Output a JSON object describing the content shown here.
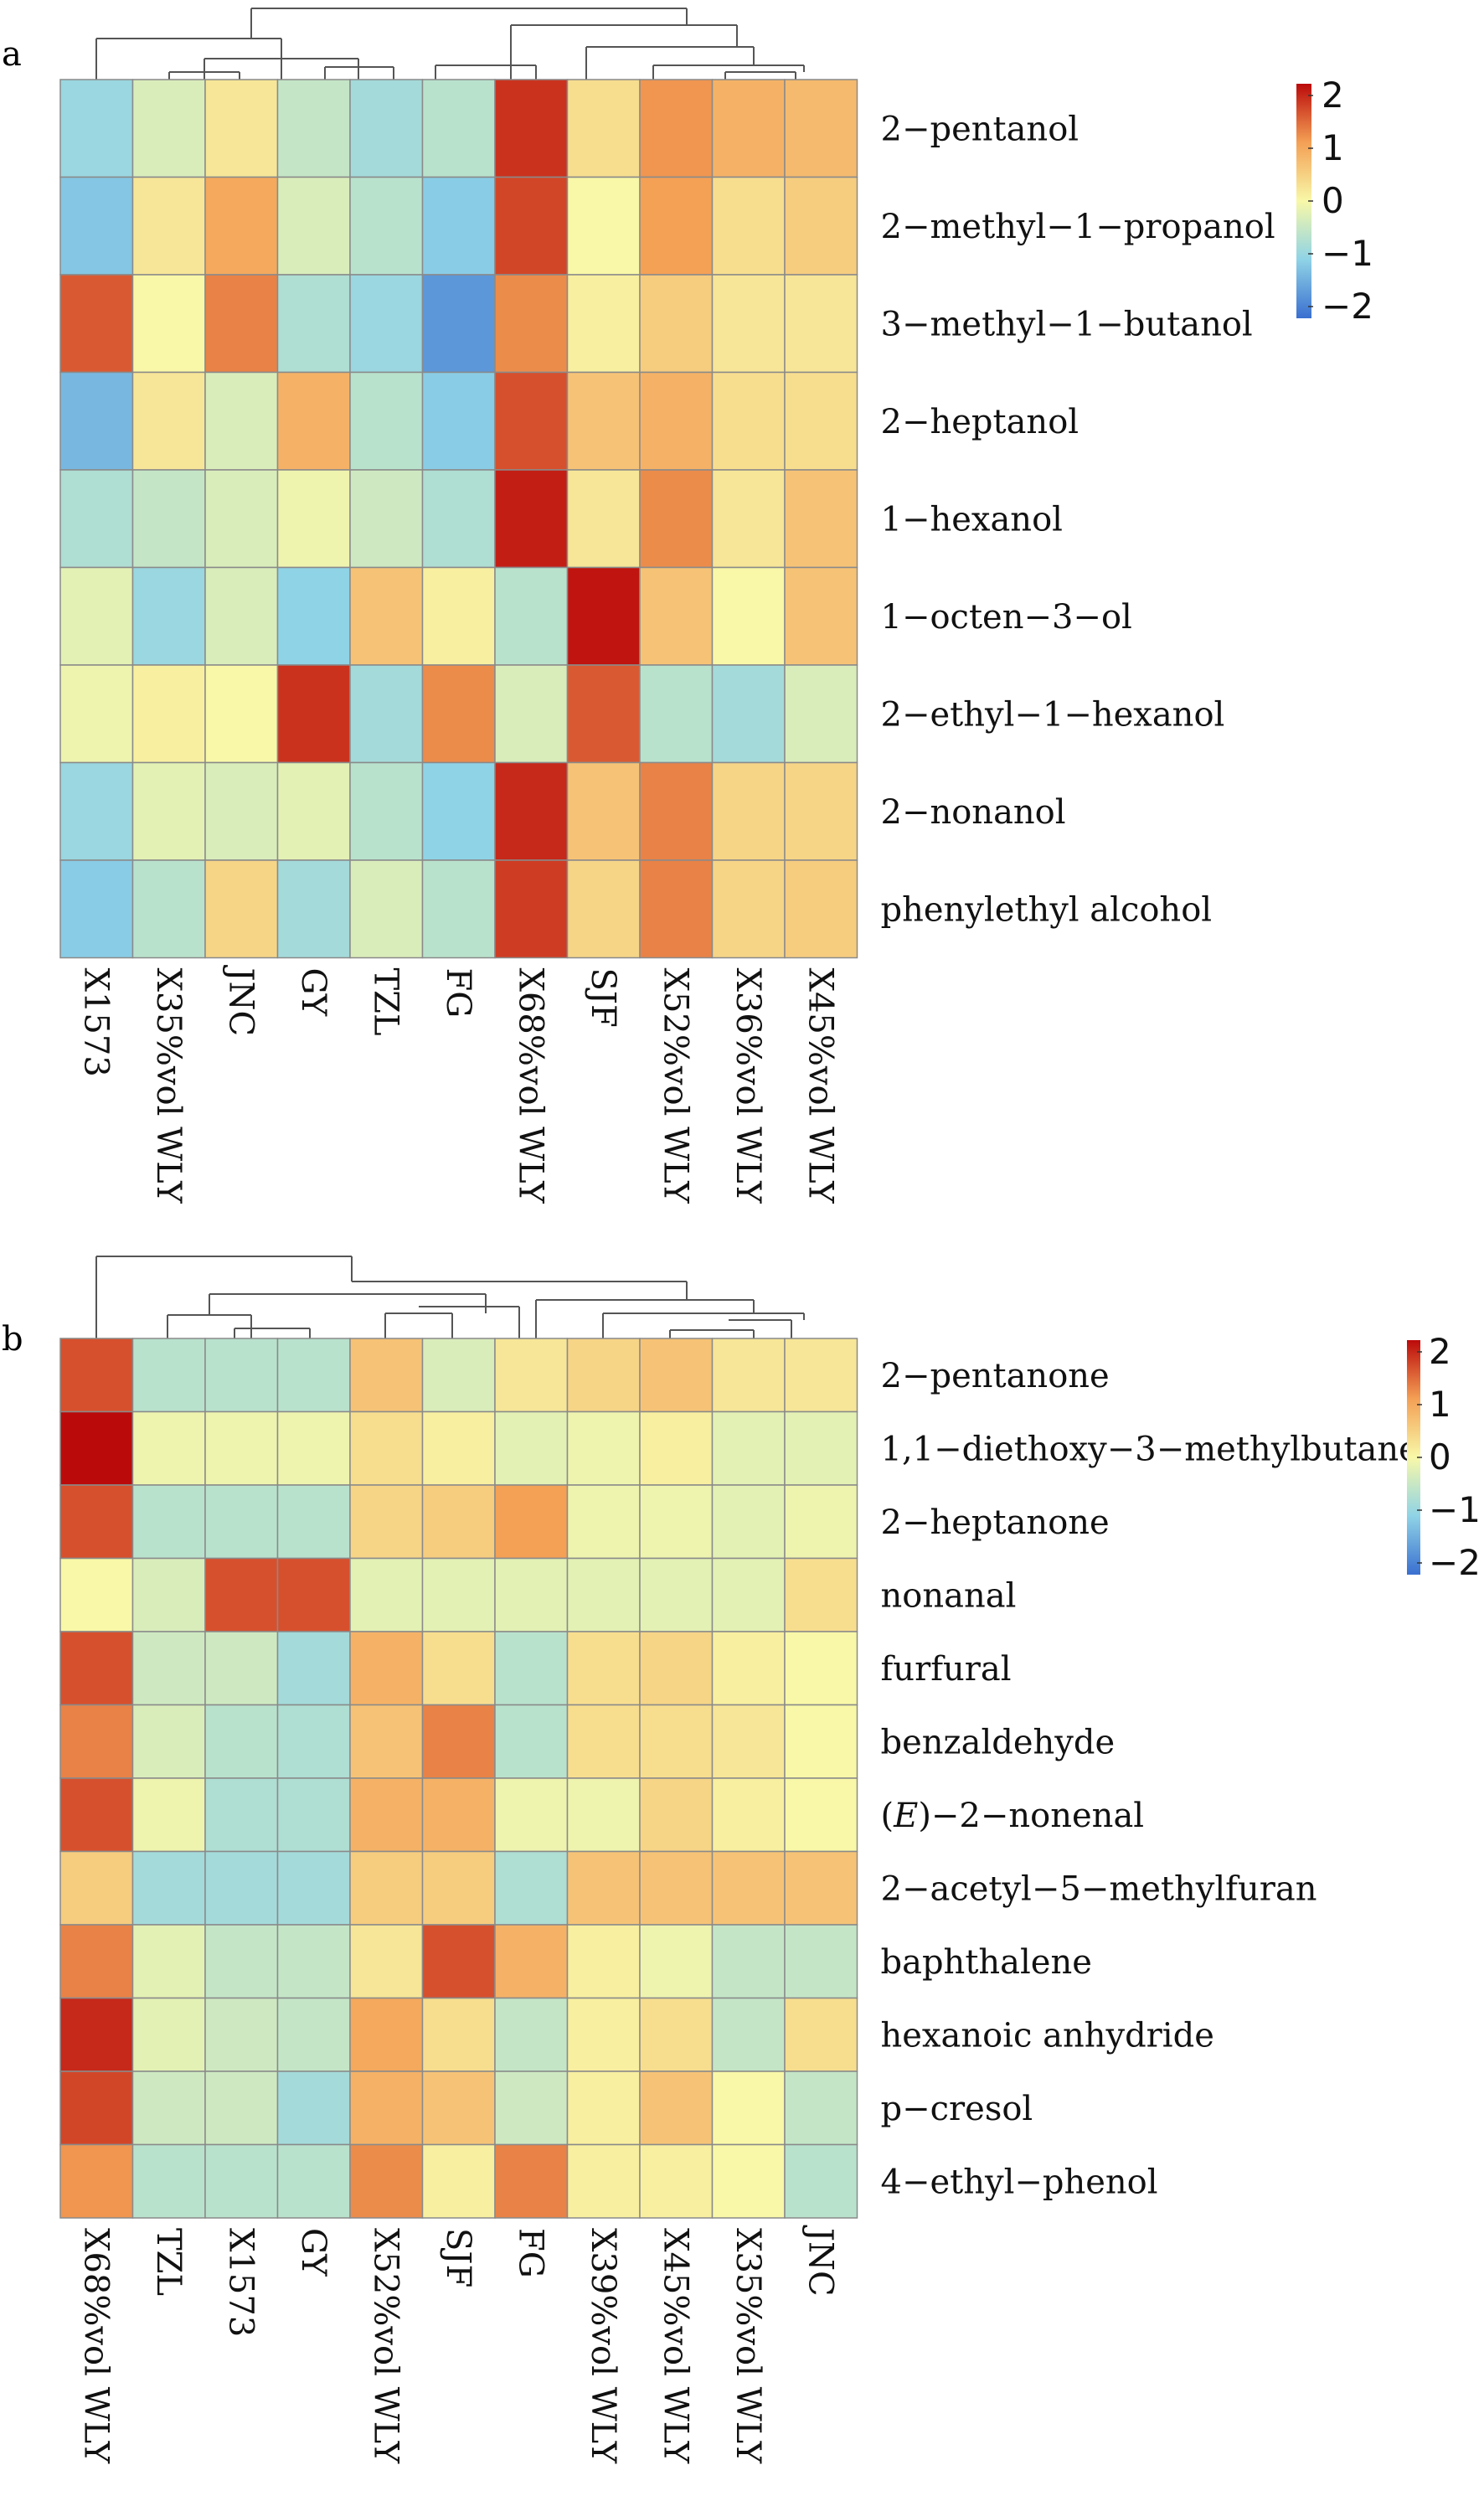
{
  "chart_data": [
    {
      "type": "heatmap",
      "panel_label": "a",
      "rows": [
        "2−pentanol",
        "2−methyl−1−propanol",
        "3−methyl−1−butanol",
        "2−heptanol",
        "1−hexanol",
        "1−octen−3−ol",
        "2−ethyl−1−hexanol",
        "2−nonanol",
        "phenylethyl alcohol"
      ],
      "columns": [
        "X1573",
        "X35%vol WLY",
        "JNC",
        "GY",
        "TZL",
        "FG",
        "X68%vol WLY",
        "SJF",
        "X52%vol WLY",
        "X36%vol WLY",
        "X45%vol WLY"
      ],
      "values": [
        [
          -0.9,
          -0.3,
          0.2,
          -0.5,
          -0.8,
          -0.6,
          2.1,
          0.3,
          1.1,
          0.8,
          0.7
        ],
        [
          -1.2,
          0.2,
          0.9,
          -0.3,
          -0.6,
          -1.1,
          1.9,
          0.0,
          1.0,
          0.3,
          0.5
        ],
        [
          1.7,
          0.0,
          1.3,
          -0.7,
          -0.9,
          -1.9,
          1.2,
          0.1,
          0.5,
          0.2,
          0.2
        ],
        [
          -1.4,
          0.2,
          -0.3,
          0.8,
          -0.6,
          -1.1,
          1.8,
          0.6,
          0.8,
          0.3,
          0.3
        ],
        [
          -0.7,
          -0.5,
          -0.3,
          -0.1,
          -0.4,
          -0.7,
          2.3,
          0.2,
          1.2,
          0.2,
          0.6
        ],
        [
          -0.2,
          -0.9,
          -0.3,
          -1.0,
          0.6,
          0.1,
          -0.6,
          2.4,
          0.6,
          0.0,
          0.6
        ],
        [
          -0.1,
          0.1,
          0.0,
          2.1,
          -0.8,
          1.2,
          -0.3,
          1.7,
          -0.6,
          -0.8,
          -0.3
        ],
        [
          -0.9,
          -0.2,
          -0.3,
          -0.2,
          -0.6,
          -1.0,
          2.2,
          0.6,
          1.3,
          0.4,
          0.4
        ],
        [
          -1.1,
          -0.6,
          0.4,
          -0.8,
          -0.3,
          -0.6,
          2.0,
          0.4,
          1.3,
          0.4,
          0.5
        ]
      ],
      "scale": {
        "min": -2,
        "max": 2,
        "ticks": [
          "2",
          "1",
          "0",
          "−1",
          "−2"
        ]
      }
    },
    {
      "type": "heatmap",
      "panel_label": "b",
      "rows": [
        "2−pentanone",
        "1,1−diethoxy−3−methylbutane",
        "2−heptanone",
        "nonanal",
        "furfural",
        "benzaldehyde",
        "(E)−2−nonenal",
        "2−acetyl−5−methylfuran",
        "baphthalene",
        "hexanoic anhydride",
        "p−cresol",
        "4−ethyl−phenol"
      ],
      "columns": [
        "X68%vol WLY",
        "TZL",
        "X1573",
        "GY",
        "X52%vol WLY",
        "SJF",
        "FG",
        "X39%vol WLY",
        "X45%vol WLY",
        "X35%vol WLY",
        "JNC"
      ],
      "values": [
        [
          1.8,
          -0.6,
          -0.6,
          -0.6,
          0.6,
          -0.3,
          0.2,
          0.4,
          0.6,
          0.2,
          0.2
        ],
        [
          2.5,
          -0.1,
          -0.1,
          -0.1,
          0.3,
          0.1,
          -0.2,
          -0.1,
          0.1,
          -0.2,
          -0.2
        ],
        [
          1.8,
          -0.6,
          -0.6,
          -0.6,
          0.4,
          0.5,
          1.0,
          -0.1,
          -0.1,
          -0.2,
          -0.1
        ],
        [
          0.0,
          -0.3,
          1.8,
          1.8,
          -0.2,
          -0.2,
          -0.2,
          -0.2,
          -0.2,
          -0.2,
          0.3
        ],
        [
          1.8,
          -0.4,
          -0.4,
          -0.8,
          0.8,
          0.3,
          -0.6,
          0.3,
          0.4,
          0.1,
          0.0
        ],
        [
          1.3,
          -0.3,
          -0.6,
          -0.7,
          0.6,
          1.3,
          -0.6,
          0.3,
          0.3,
          0.2,
          0.0
        ],
        [
          1.8,
          -0.1,
          -0.7,
          -0.7,
          0.8,
          0.8,
          -0.1,
          -0.1,
          0.4,
          0.1,
          0.0
        ],
        [
          0.5,
          -0.8,
          -0.8,
          -0.8,
          0.5,
          0.5,
          -0.7,
          0.6,
          0.6,
          0.6,
          0.6
        ],
        [
          1.3,
          -0.2,
          -0.5,
          -0.5,
          0.2,
          1.8,
          0.8,
          0.1,
          -0.1,
          -0.5,
          -0.5
        ],
        [
          2.2,
          -0.2,
          -0.4,
          -0.5,
          0.9,
          0.3,
          -0.5,
          0.1,
          0.3,
          -0.5,
          0.3
        ],
        [
          1.9,
          -0.4,
          -0.4,
          -0.8,
          0.8,
          0.6,
          -0.4,
          0.1,
          0.6,
          0.0,
          -0.5
        ],
        [
          1.1,
          -0.6,
          -0.6,
          -0.6,
          1.2,
          0.1,
          1.3,
          0.1,
          0.1,
          0.0,
          -0.6
        ]
      ],
      "scale": {
        "min": -2,
        "max": 2,
        "ticks": [
          "2",
          "1",
          "0",
          "−1",
          "−2"
        ]
      }
    }
  ]
}
